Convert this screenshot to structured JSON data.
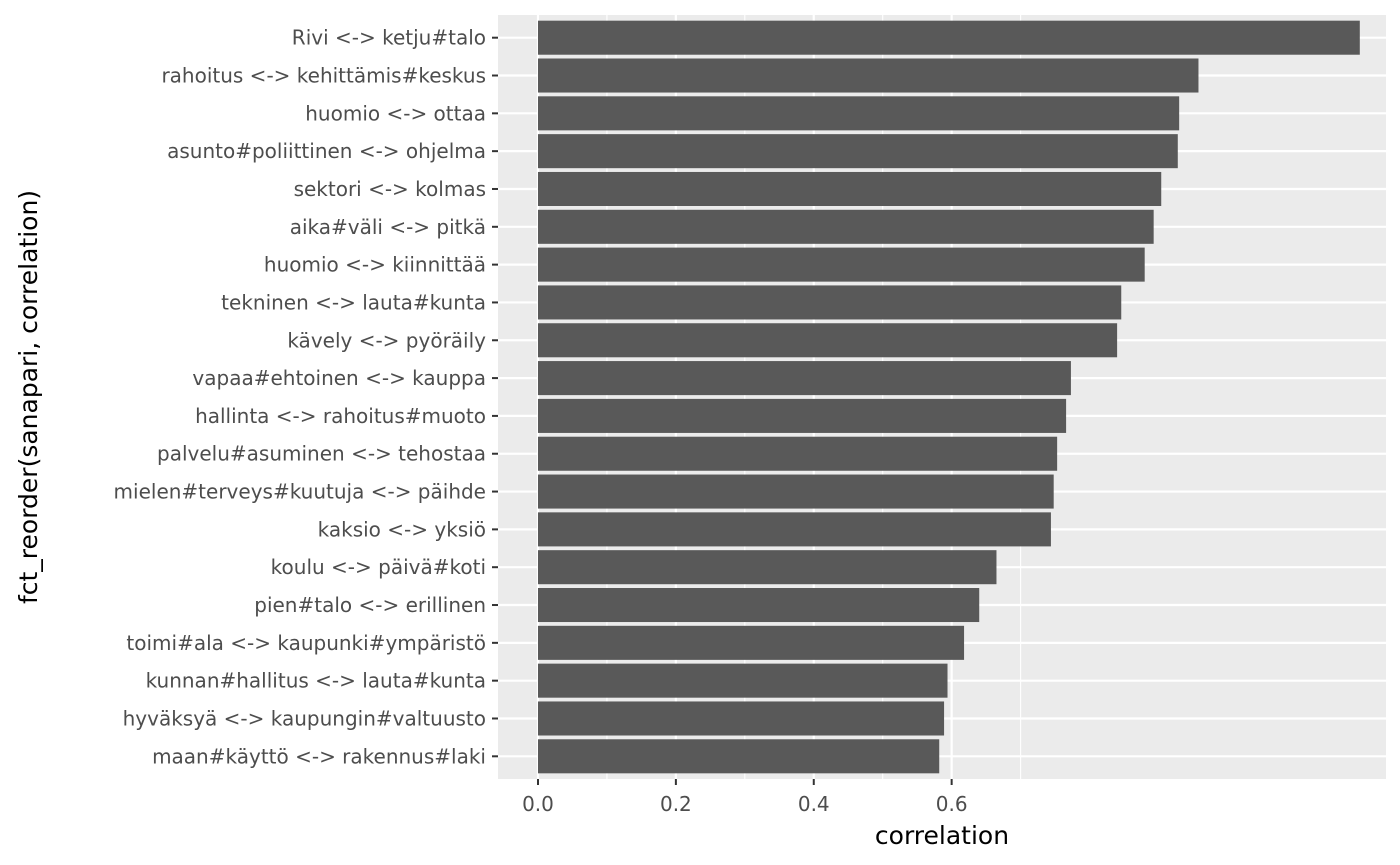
{
  "chart_data": {
    "type": "bar",
    "orientation": "horizontal",
    "xlabel": "correlation",
    "ylabel": "fct_reorder(sanapari, correlation)",
    "xlim": [
      -0.058,
      1.23
    ],
    "x_ticks": [
      0.0,
      0.2,
      0.4,
      0.6
    ],
    "x_tick_labels": [
      "0.0",
      "0.2",
      "0.4",
      "0.6"
    ],
    "grid": true,
    "colors": {
      "panel_background": "#ebebeb",
      "grid": "#ffffff",
      "bar_fill": "#595959",
      "tick_text": "#4d4d4d",
      "tick_mark": "#333333"
    },
    "categories": [
      "Rivi <-> ketju#talo",
      "rahoitus <-> kehittämis#keskus",
      "huomio <-> ottaa",
      "asunto#poliittinen <-> ohjelma",
      "sektori <-> kolmas",
      "aika#väli <-> pitkä",
      "huomio <-> kiinnittää",
      "tekninen <-> lauta#kunta",
      "kävely <-> pyöräily",
      "vapaa#ehtoinen <-> kauppa",
      "hallinta <-> rahoitus#muoto",
      "palvelu#asuminen <-> tehostaa",
      "mielen#terveys#kuutuja <-> päihde",
      "kaksio <-> yksiö",
      "koulu <-> päivä#koti",
      "pien#talo <-> erillinen",
      "toimi#ala <-> kaupunki#ympäristö",
      "kunnan#hallitus <-> lauta#kunta",
      "hyväksyä <-> kaupungin#valtuusto",
      "maan#käyttö <-> rakennus#laki"
    ],
    "values": [
      1.192,
      0.958,
      0.93,
      0.928,
      0.904,
      0.893,
      0.88,
      0.846,
      0.84,
      0.773,
      0.766,
      0.753,
      0.748,
      0.744,
      0.665,
      0.64,
      0.618,
      0.594,
      0.589,
      0.582
    ]
  }
}
